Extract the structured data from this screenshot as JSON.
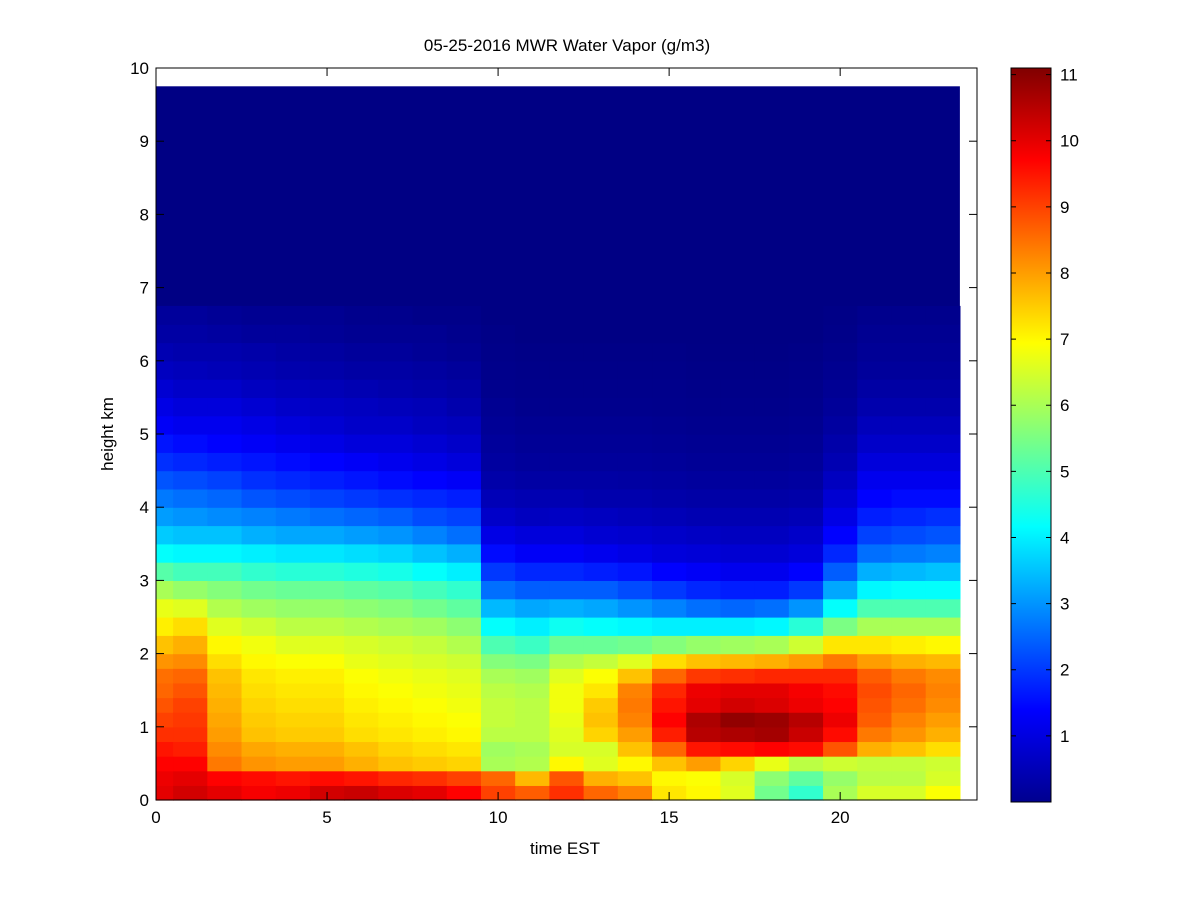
{
  "chart_data": {
    "type": "heatmap",
    "title": "05-25-2016 MWR Water Vapor (g/m3)",
    "xlabel": "time EST",
    "ylabel": "height km",
    "xlim": [
      0,
      24
    ],
    "ylim": [
      0,
      10
    ],
    "xticks": [
      "0",
      "5",
      "10",
      "15",
      "20"
    ],
    "yticks": [
      "0",
      "1",
      "2",
      "3",
      "4",
      "5",
      "6",
      "7",
      "8",
      "9",
      "10"
    ],
    "colorbar": {
      "colormap": "jet",
      "range": [
        0,
        11.1
      ],
      "ticks": [
        "1",
        "2",
        "3",
        "4",
        "5",
        "6",
        "7",
        "8",
        "9",
        "10",
        "11"
      ]
    },
    "x_extent": [
      0,
      23.5
    ],
    "y_extent": [
      0,
      9.75
    ],
    "times": [
      0.5,
      1.5,
      2.5,
      3.5,
      4.5,
      5.5,
      6.5,
      7.5,
      8.5,
      9.5,
      10.5,
      11.5,
      12.5,
      13.5,
      14.5,
      15.5,
      16.5,
      17.5,
      18.5,
      19.5,
      20.5,
      21.5,
      22.5,
      23.5
    ],
    "heights": [
      0,
      0.2,
      0.4,
      0.6,
      0.8,
      1.0,
      1.2,
      1.4,
      1.6,
      1.8,
      2.0,
      2.25,
      2.5,
      2.75,
      3.0,
      3.25,
      3.5,
      3.75,
      4.0,
      4.25,
      4.5,
      4.75,
      5.0,
      5.25,
      5.5,
      5.75,
      6.0,
      6.25,
      6.5
    ],
    "profiles": [
      [
        10.0,
        9.9,
        9.7,
        9.5,
        9.2,
        9.0,
        8.8,
        8.6,
        8.5,
        8.1,
        7.6,
        7.1,
        6.7,
        6.0,
        5.1,
        4.2,
        3.6,
        3.1,
        2.7,
        2.3,
        1.9,
        1.6,
        1.3,
        1.1,
        0.9,
        0.7,
        0.55,
        0.4,
        0.3
      ],
      [
        10.2,
        10.0,
        9.7,
        9.4,
        9.2,
        9.1,
        9.0,
        8.8,
        8.6,
        8.2,
        7.8,
        7.3,
        6.6,
        5.8,
        4.9,
        4.1,
        3.5,
        3.0,
        2.6,
        2.2,
        1.8,
        1.5,
        1.2,
        1.0,
        0.8,
        0.65,
        0.5,
        0.4,
        0.3
      ],
      [
        10.0,
        9.7,
        8.4,
        8.2,
        8.0,
        7.9,
        7.8,
        7.7,
        7.6,
        7.3,
        7.0,
        6.6,
        6.1,
        5.6,
        4.9,
        4.1,
        3.5,
        2.9,
        2.5,
        2.1,
        1.7,
        1.4,
        1.2,
        1.0,
        0.8,
        0.6,
        0.5,
        0.35,
        0.25
      ],
      [
        9.8,
        9.6,
        8.1,
        7.9,
        7.6,
        7.5,
        7.4,
        7.3,
        7.2,
        7.0,
        6.8,
        6.4,
        5.9,
        5.4,
        4.7,
        4.0,
        3.3,
        2.8,
        2.3,
        1.9,
        1.6,
        1.3,
        1.1,
        0.9,
        0.7,
        0.55,
        0.45,
        0.3,
        0.2
      ],
      [
        9.9,
        9.5,
        8.0,
        7.8,
        7.5,
        7.4,
        7.3,
        7.2,
        7.1,
        6.9,
        6.6,
        6.2,
        5.8,
        5.3,
        4.6,
        3.9,
        3.2,
        2.7,
        2.2,
        1.8,
        1.5,
        1.2,
        1.0,
        0.8,
        0.65,
        0.5,
        0.4,
        0.3,
        0.2
      ],
      [
        10.2,
        9.6,
        8.0,
        7.8,
        7.5,
        7.4,
        7.3,
        7.2,
        7.1,
        6.9,
        6.6,
        6.2,
        5.8,
        5.3,
        4.6,
        3.9,
        3.2,
        2.6,
        2.1,
        1.7,
        1.4,
        1.1,
        0.9,
        0.75,
        0.6,
        0.45,
        0.35,
        0.25,
        0.2
      ],
      [
        10.3,
        9.5,
        7.8,
        7.6,
        7.3,
        7.2,
        7.1,
        7.0,
        6.9,
        6.7,
        6.5,
        6.1,
        5.7,
        5.2,
        4.5,
        3.8,
        3.1,
        2.5,
        2.0,
        1.6,
        1.3,
        1.0,
        0.8,
        0.7,
        0.55,
        0.4,
        0.3,
        0.2,
        0.15
      ],
      [
        10.1,
        9.3,
        7.6,
        7.4,
        7.2,
        7.1,
        7.0,
        6.9,
        6.8,
        6.6,
        6.4,
        6.0,
        5.6,
        5.1,
        4.4,
        3.7,
        3.0,
        2.4,
        1.9,
        1.5,
        1.2,
        1.0,
        0.8,
        0.65,
        0.5,
        0.4,
        0.3,
        0.2,
        0.15
      ],
      [
        10.0,
        9.2,
        7.5,
        7.3,
        7.1,
        7.0,
        6.9,
        6.8,
        6.7,
        6.5,
        6.3,
        5.9,
        5.4,
        4.9,
        4.2,
        3.5,
        2.8,
        2.2,
        1.8,
        1.4,
        1.1,
        0.9,
        0.7,
        0.6,
        0.45,
        0.35,
        0.25,
        0.2,
        0.1
      ],
      [
        9.7,
        9.0,
        7.4,
        7.2,
        7.0,
        6.9,
        6.8,
        6.7,
        6.6,
        6.4,
        6.1,
        5.7,
        5.2,
        4.7,
        4.0,
        3.3,
        2.6,
        2.1,
        1.7,
        1.3,
        1.0,
        0.8,
        0.65,
        0.5,
        0.4,
        0.3,
        0.2,
        0.15,
        0.1
      ],
      [
        9.0,
        8.6,
        6.0,
        5.9,
        6.2,
        6.3,
        6.3,
        6.2,
        6.0,
        5.6,
        5.0,
        4.2,
        3.4,
        2.6,
        2.0,
        1.5,
        1.1,
        0.8,
        0.6,
        0.45,
        0.35,
        0.3,
        0.25,
        0.2,
        0.15,
        0.12,
        0.1,
        0.08,
        0.05
      ],
      [
        8.7,
        7.7,
        6.1,
        6.0,
        6.2,
        6.2,
        6.2,
        6.1,
        5.9,
        5.5,
        4.8,
        4.0,
        3.2,
        2.4,
        1.8,
        1.3,
        1.0,
        0.7,
        0.55,
        0.4,
        0.3,
        0.25,
        0.2,
        0.15,
        0.12,
        0.1,
        0.08,
        0.05,
        0.05
      ],
      [
        9.2,
        8.8,
        7.0,
        6.5,
        6.6,
        6.7,
        6.8,
        6.8,
        6.6,
        6.1,
        5.3,
        4.3,
        3.3,
        2.4,
        1.8,
        1.3,
        1.0,
        0.75,
        0.55,
        0.4,
        0.3,
        0.25,
        0.2,
        0.15,
        0.12,
        0.1,
        0.08,
        0.05,
        0.05
      ],
      [
        8.6,
        7.8,
        6.6,
        6.5,
        7.4,
        7.6,
        7.5,
        7.2,
        6.9,
        6.3,
        5.3,
        4.2,
        3.2,
        2.4,
        1.7,
        1.2,
        0.9,
        0.7,
        0.5,
        0.4,
        0.3,
        0.25,
        0.2,
        0.15,
        0.12,
        0.1,
        0.08,
        0.05,
        0.05
      ],
      [
        8.3,
        7.6,
        7.0,
        7.6,
        8.0,
        8.3,
        8.4,
        8.3,
        7.6,
        6.6,
        5.4,
        4.1,
        3.0,
        2.2,
        1.6,
        1.1,
        0.85,
        0.65,
        0.5,
        0.38,
        0.3,
        0.25,
        0.2,
        0.15,
        0.12,
        0.1,
        0.08,
        0.05,
        0.05
      ],
      [
        7.2,
        7.0,
        7.6,
        8.6,
        9.4,
        9.7,
        9.5,
        9.3,
        8.6,
        7.3,
        5.6,
        4.0,
        2.8,
        2.0,
        1.4,
        1.0,
        0.8,
        0.6,
        0.45,
        0.35,
        0.28,
        0.22,
        0.18,
        0.14,
        0.12,
        0.1,
        0.08,
        0.05,
        0.05
      ],
      [
        7.0,
        6.9,
        8.0,
        9.5,
        10.5,
        10.6,
        10.0,
        9.9,
        9.1,
        7.6,
        5.8,
        4.0,
        2.6,
        1.8,
        1.3,
        0.95,
        0.75,
        0.55,
        0.42,
        0.32,
        0.25,
        0.2,
        0.16,
        0.13,
        0.1,
        0.08,
        0.06,
        0.05,
        0.05
      ],
      [
        6.6,
        6.5,
        7.4,
        9.6,
        10.6,
        10.9,
        10.2,
        10.0,
        9.2,
        7.7,
        5.9,
        4.0,
        2.5,
        1.7,
        1.2,
        0.9,
        0.7,
        0.55,
        0.42,
        0.32,
        0.25,
        0.2,
        0.16,
        0.13,
        0.1,
        0.08,
        0.06,
        0.05,
        0.05
      ],
      [
        5.4,
        5.7,
        6.7,
        9.7,
        10.7,
        10.8,
        10.1,
        10.0,
        9.3,
        7.8,
        6.0,
        4.1,
        2.6,
        1.7,
        1.2,
        0.9,
        0.7,
        0.55,
        0.42,
        0.32,
        0.25,
        0.2,
        0.16,
        0.13,
        0.1,
        0.08,
        0.06,
        0.05,
        0.05
      ],
      [
        4.7,
        5.2,
        6.2,
        9.6,
        10.3,
        10.5,
        9.9,
        9.8,
        9.3,
        8.0,
        6.4,
        4.6,
        3.0,
        2.0,
        1.4,
        1.0,
        0.8,
        0.6,
        0.45,
        0.35,
        0.28,
        0.22,
        0.18,
        0.15,
        0.12,
        0.1,
        0.08,
        0.05,
        0.05
      ],
      [
        6.0,
        5.8,
        6.4,
        8.8,
        9.6,
        9.9,
        9.7,
        9.6,
        9.3,
        8.4,
        7.2,
        5.5,
        4.2,
        3.2,
        2.4,
        1.8,
        1.4,
        1.1,
        0.9,
        0.7,
        0.55,
        0.45,
        0.35,
        0.28,
        0.22,
        0.18,
        0.14,
        0.1,
        0.08
      ],
      [
        6.5,
        6.2,
        6.3,
        7.8,
        8.4,
        8.7,
        8.8,
        8.9,
        8.7,
        8.0,
        7.2,
        6.0,
        5.0,
        4.1,
        3.3,
        2.6,
        2.1,
        1.7,
        1.4,
        1.2,
        1.0,
        0.8,
        0.65,
        0.5,
        0.4,
        0.3,
        0.25,
        0.2,
        0.15
      ],
      [
        6.5,
        6.2,
        6.3,
        7.6,
        8.1,
        8.3,
        8.5,
        8.6,
        8.4,
        7.8,
        7.1,
        6.0,
        5.0,
        4.2,
        3.4,
        2.7,
        2.2,
        1.8,
        1.5,
        1.2,
        1.0,
        0.8,
        0.65,
        0.5,
        0.4,
        0.3,
        0.25,
        0.2,
        0.15
      ],
      [
        6.9,
        6.5,
        6.4,
        7.3,
        7.8,
        8.0,
        8.2,
        8.3,
        8.2,
        7.7,
        7.0,
        6.0,
        5.0,
        4.2,
        3.5,
        2.8,
        2.3,
        1.9,
        1.5,
        1.2,
        1.0,
        0.8,
        0.65,
        0.5,
        0.4,
        0.3,
        0.25,
        0.2,
        0.15
      ]
    ]
  }
}
